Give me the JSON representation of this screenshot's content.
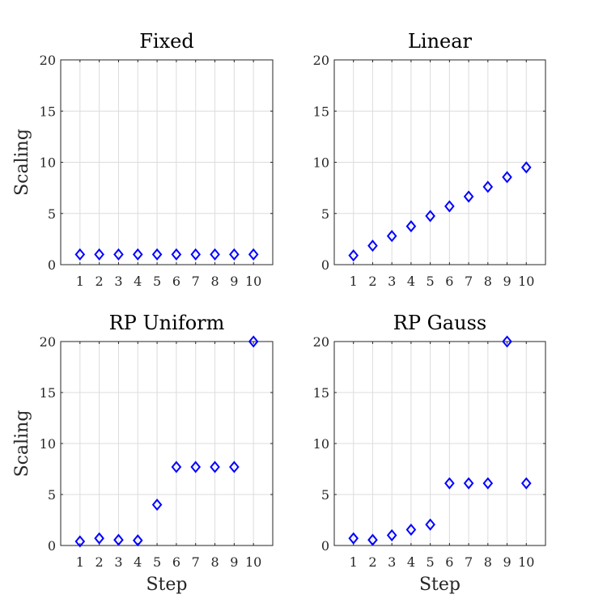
{
  "chart_data": [
    {
      "type": "scatter",
      "title": "Fixed",
      "xlabel": "",
      "ylabel": "Scaling",
      "x": [
        1,
        2,
        3,
        4,
        5,
        6,
        7,
        8,
        9,
        10
      ],
      "y": [
        1,
        1,
        1,
        1,
        1,
        1,
        1,
        1,
        1,
        1
      ],
      "xticks": [
        "1",
        "2",
        "3",
        "4",
        "5",
        "6",
        "7",
        "8",
        "9",
        "10"
      ],
      "yticks": [
        0,
        5,
        10,
        15,
        20
      ],
      "xlim": [
        0,
        11
      ],
      "ylim": [
        0,
        20
      ],
      "marker": "diamond",
      "color": "#0000ff",
      "grid": true
    },
    {
      "type": "scatter",
      "title": "Linear",
      "xlabel": "",
      "ylabel": "",
      "x": [
        1,
        2,
        3,
        4,
        5,
        6,
        7,
        8,
        9,
        10
      ],
      "y": [
        0.9,
        1.85,
        2.8,
        3.75,
        4.75,
        5.7,
        6.65,
        7.6,
        8.55,
        9.5
      ],
      "xticks": [
        "1",
        "2",
        "3",
        "4",
        "5",
        "6",
        "7",
        "8",
        "9",
        "10"
      ],
      "yticks": [
        0,
        5,
        10,
        15,
        20
      ],
      "xlim": [
        0,
        11
      ],
      "ylim": [
        0,
        20
      ],
      "marker": "diamond",
      "color": "#0000ff",
      "grid": true
    },
    {
      "type": "scatter",
      "title": "RP Uniform",
      "xlabel": "Step",
      "ylabel": "Scaling",
      "x": [
        1,
        2,
        3,
        4,
        5,
        6,
        7,
        8,
        9,
        10
      ],
      "y": [
        0.4,
        0.7,
        0.55,
        0.5,
        4.0,
        7.7,
        7.7,
        7.7,
        7.7,
        20
      ],
      "xticks": [
        "1",
        "2",
        "3",
        "4",
        "5",
        "6",
        "7",
        "8",
        "9",
        "10"
      ],
      "yticks": [
        0,
        5,
        10,
        15,
        20
      ],
      "xlim": [
        0,
        11
      ],
      "ylim": [
        0,
        20
      ],
      "marker": "diamond",
      "color": "#0000ff",
      "grid": true
    },
    {
      "type": "scatter",
      "title": "RP Gauss",
      "xlabel": "Step",
      "ylabel": "",
      "x": [
        1,
        2,
        3,
        4,
        5,
        6,
        7,
        8,
        9,
        10
      ],
      "y": [
        0.7,
        0.55,
        1.0,
        1.55,
        2.05,
        6.1,
        6.1,
        6.1,
        20,
        6.1
      ],
      "xticks": [
        "1",
        "2",
        "3",
        "4",
        "5",
        "6",
        "7",
        "8",
        "9",
        "10"
      ],
      "yticks": [
        0,
        5,
        10,
        15,
        20
      ],
      "xlim": [
        0,
        11
      ],
      "ylim": [
        0,
        20
      ],
      "marker": "diamond",
      "color": "#0000ff",
      "grid": true
    }
  ]
}
